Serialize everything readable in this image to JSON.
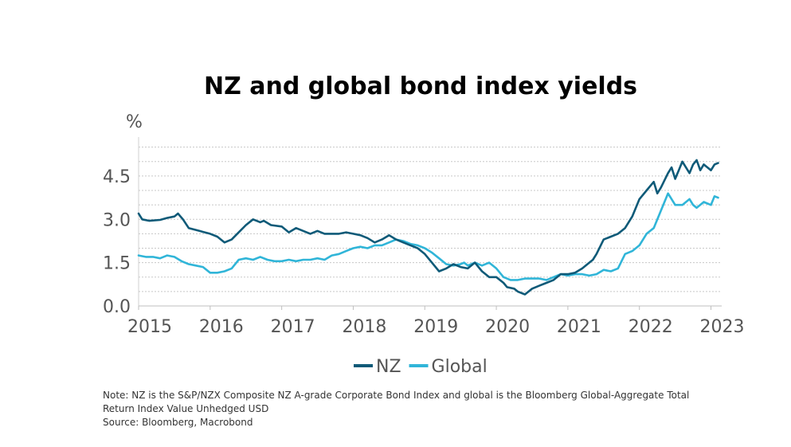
{
  "chart_data": {
    "type": "line",
    "title": "NZ and global bond index yields",
    "ylabel": "%",
    "xlabel": "",
    "ylim": [
      0,
      5.85
    ],
    "xlim": [
      2015,
      2023.15
    ],
    "yticks": [
      0.0,
      1.5,
      3.0,
      4.5
    ],
    "ytick_labels": [
      "0.0",
      "1.5",
      "3.0",
      "4.5"
    ],
    "xticks": [
      2015,
      2016,
      2017,
      2018,
      2019,
      2020,
      2021,
      2022,
      2023
    ],
    "xtick_labels": [
      "2015",
      "2016",
      "2017",
      "2018",
      "2019",
      "2020",
      "2021",
      "2022",
      "2023"
    ],
    "grid": "horizontal-dotted",
    "legend_position": "bottom-center",
    "series": [
      {
        "name": "NZ",
        "color": "#0e5a78",
        "x": [
          2015.0,
          2015.05,
          2015.15,
          2015.3,
          2015.4,
          2015.5,
          2015.55,
          2015.62,
          2015.7,
          2015.85,
          2016.0,
          2016.1,
          2016.2,
          2016.3,
          2016.4,
          2016.5,
          2016.6,
          2016.7,
          2016.75,
          2016.85,
          2017.0,
          2017.1,
          2017.2,
          2017.3,
          2017.4,
          2017.5,
          2017.6,
          2017.7,
          2017.8,
          2017.9,
          2018.0,
          2018.1,
          2018.2,
          2018.3,
          2018.4,
          2018.5,
          2018.6,
          2018.7,
          2018.8,
          2018.9,
          2019.0,
          2019.1,
          2019.2,
          2019.3,
          2019.4,
          2019.5,
          2019.6,
          2019.7,
          2019.8,
          2019.9,
          2020.0,
          2020.1,
          2020.15,
          2020.25,
          2020.3,
          2020.4,
          2020.5,
          2020.6,
          2020.7,
          2020.8,
          2020.9,
          2021.0,
          2021.1,
          2021.2,
          2021.3,
          2021.35,
          2021.4,
          2021.5,
          2021.6,
          2021.7,
          2021.8,
          2021.9,
          2022.0,
          2022.1,
          2022.2,
          2022.25,
          2022.3,
          2022.4,
          2022.45,
          2022.5,
          2022.55,
          2022.6,
          2022.7,
          2022.75,
          2022.8,
          2022.85,
          2022.9,
          2023.0,
          2023.05,
          2023.1
        ],
        "values": [
          3.2,
          3.0,
          2.95,
          2.98,
          3.05,
          3.1,
          3.2,
          3.0,
          2.7,
          2.6,
          2.5,
          2.4,
          2.2,
          2.3,
          2.55,
          2.8,
          3.0,
          2.9,
          2.95,
          2.8,
          2.75,
          2.55,
          2.7,
          2.6,
          2.5,
          2.6,
          2.5,
          2.5,
          2.5,
          2.55,
          2.5,
          2.45,
          2.35,
          2.2,
          2.3,
          2.45,
          2.3,
          2.2,
          2.1,
          2.0,
          1.8,
          1.5,
          1.2,
          1.3,
          1.45,
          1.35,
          1.3,
          1.5,
          1.2,
          1.0,
          1.0,
          0.8,
          0.65,
          0.6,
          0.5,
          0.4,
          0.6,
          0.7,
          0.8,
          0.9,
          1.1,
          1.1,
          1.15,
          1.3,
          1.5,
          1.6,
          1.8,
          2.3,
          2.4,
          2.5,
          2.7,
          3.1,
          3.7,
          4.0,
          4.3,
          3.9,
          4.1,
          4.6,
          4.8,
          4.4,
          4.7,
          5.0,
          4.6,
          4.9,
          5.05,
          4.7,
          4.9,
          4.7,
          4.9,
          4.95
        ]
      },
      {
        "name": "Global",
        "color": "#30b5d8",
        "x": [
          2015.0,
          2015.1,
          2015.2,
          2015.3,
          2015.4,
          2015.5,
          2015.6,
          2015.7,
          2015.8,
          2015.9,
          2016.0,
          2016.1,
          2016.2,
          2016.3,
          2016.4,
          2016.5,
          2016.6,
          2016.7,
          2016.8,
          2016.9,
          2017.0,
          2017.1,
          2017.2,
          2017.3,
          2017.4,
          2017.5,
          2017.6,
          2017.7,
          2017.8,
          2017.9,
          2018.0,
          2018.1,
          2018.2,
          2018.3,
          2018.4,
          2018.5,
          2018.6,
          2018.7,
          2018.8,
          2018.9,
          2019.0,
          2019.1,
          2019.2,
          2019.3,
          2019.4,
          2019.5,
          2019.55,
          2019.6,
          2019.7,
          2019.8,
          2019.9,
          2020.0,
          2020.1,
          2020.2,
          2020.3,
          2020.4,
          2020.5,
          2020.6,
          2020.7,
          2020.8,
          2020.9,
          2021.0,
          2021.1,
          2021.2,
          2021.3,
          2021.4,
          2021.5,
          2021.6,
          2021.7,
          2021.8,
          2021.9,
          2022.0,
          2022.1,
          2022.2,
          2022.3,
          2022.4,
          2022.45,
          2022.5,
          2022.6,
          2022.7,
          2022.75,
          2022.8,
          2022.9,
          2023.0,
          2023.05,
          2023.1
        ],
        "values": [
          1.75,
          1.7,
          1.7,
          1.65,
          1.75,
          1.7,
          1.55,
          1.45,
          1.4,
          1.35,
          1.15,
          1.15,
          1.2,
          1.3,
          1.6,
          1.65,
          1.6,
          1.7,
          1.6,
          1.55,
          1.55,
          1.6,
          1.55,
          1.6,
          1.6,
          1.65,
          1.6,
          1.75,
          1.8,
          1.9,
          2.0,
          2.05,
          2.0,
          2.1,
          2.1,
          2.2,
          2.3,
          2.25,
          2.15,
          2.1,
          2.0,
          1.85,
          1.65,
          1.45,
          1.4,
          1.45,
          1.5,
          1.4,
          1.5,
          1.4,
          1.5,
          1.3,
          1.0,
          0.9,
          0.9,
          0.95,
          0.95,
          0.95,
          0.9,
          1.0,
          1.1,
          1.05,
          1.1,
          1.1,
          1.05,
          1.1,
          1.25,
          1.2,
          1.3,
          1.8,
          1.9,
          2.1,
          2.5,
          2.7,
          3.3,
          3.9,
          3.7,
          3.5,
          3.5,
          3.7,
          3.5,
          3.4,
          3.6,
          3.5,
          3.8,
          3.75
        ]
      }
    ],
    "notes": [
      "Note: NZ is the S&P/NZX Composite NZ A-grade Corporate Bond Index and global is the Bloomberg Global-Aggregate Total",
      "Return Index Value Unhedged USD",
      "Source: Bloomberg, Macrobond"
    ]
  }
}
